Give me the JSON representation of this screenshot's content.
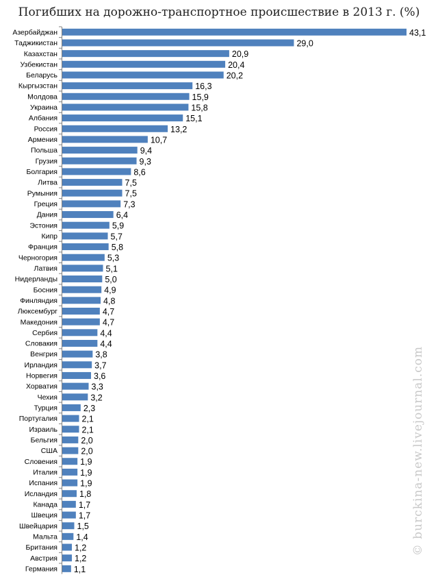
{
  "title": "Погибших на дорожно-транспортное происшествие в 2013 г. (%)",
  "watermark": "© burckina-new.livejournal.com",
  "colors": {
    "bar": "#4f81bd",
    "axis": "#808080",
    "text": "#000000"
  },
  "chart_data": {
    "type": "bar",
    "orientation": "horizontal",
    "title": "Погибших на дорожно-транспортное происшествие в 2013 г. (%)",
    "xlim": [
      0,
      43.1
    ],
    "grid": false,
    "categories": [
      "Азербайджан",
      "Таджикистан",
      "Казахстан",
      "Узбекистан",
      "Беларусь",
      "Кыргызстан",
      "Молдова",
      "Украина",
      "Албания",
      "Россия",
      "Армения",
      "Польша",
      "Грузия",
      "Болгария",
      "Литва",
      "Румыния",
      "Греция",
      "Дания",
      "Эстония",
      "Кипр",
      "Франция",
      "Черногория",
      "Латвия",
      "Нидерланды",
      "Босния",
      "Финляндия",
      "Люксембург",
      "Македония",
      "Сербия",
      "Словакия",
      "Венгрия",
      "Ирландия",
      "Норвегия",
      "Хорватия",
      "Чехия",
      "Турция",
      "Португалия",
      "Израиль",
      "Бельгия",
      "США",
      "Словения",
      "Италия",
      "Испания",
      "Исландия",
      "Канада",
      "Швеция",
      "Швейцария",
      "Мальта",
      "Британия",
      "Австрия",
      "Германия"
    ],
    "values": [
      43.1,
      29.0,
      20.9,
      20.4,
      20.2,
      16.3,
      15.9,
      15.8,
      15.1,
      13.2,
      10.7,
      9.4,
      9.3,
      8.6,
      7.5,
      7.5,
      7.3,
      6.4,
      5.9,
      5.7,
      5.8,
      5.3,
      5.1,
      5.0,
      4.9,
      4.8,
      4.7,
      4.7,
      4.4,
      4.4,
      3.8,
      3.7,
      3.6,
      3.3,
      3.2,
      2.3,
      2.1,
      2.1,
      2.0,
      2.0,
      1.9,
      1.9,
      1.9,
      1.8,
      1.7,
      1.7,
      1.5,
      1.4,
      1.2,
      1.2,
      1.1
    ],
    "labels": [
      "43,1",
      "29,0",
      "20,9",
      "20,4",
      "20,2",
      "16,3",
      "15,9",
      "15,8",
      "15,1",
      "13,2",
      "10,7",
      "9,4",
      "9,3",
      "8,6",
      "7,5",
      "7,5",
      "7,3",
      "6,4",
      "5,9",
      "5,7",
      "5,8",
      "5,3",
      "5,1",
      "5,0",
      "4,9",
      "4,8",
      "4,7",
      "4,7",
      "4,4",
      "4,4",
      "3,8",
      "3,7",
      "3,6",
      "3,3",
      "3,2",
      "2,3",
      "2,1",
      "2,1",
      "2,0",
      "2,0",
      "1,9",
      "1,9",
      "1,9",
      "1,8",
      "1,7",
      "1,7",
      "1,5",
      "1,4",
      "1,2",
      "1,2",
      "1,1"
    ]
  }
}
